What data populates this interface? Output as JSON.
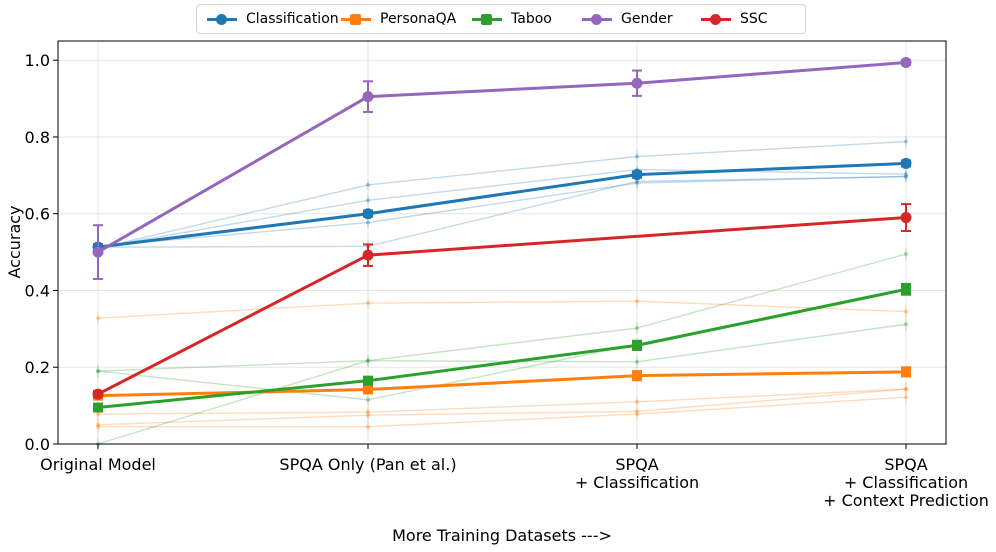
{
  "chart_data": {
    "type": "line",
    "xlabel": "More Training Datasets --->",
    "ylabel": "Accuracy",
    "ylim": [
      0.0,
      1.05
    ],
    "yticks": [
      "0.0",
      "0.2",
      "0.4",
      "0.6",
      "0.8",
      "1.0"
    ],
    "grid": true,
    "legend_position": "top-center",
    "categories": [
      [
        "Original Model"
      ],
      [
        "SPQA Only (Pan et al.)"
      ],
      [
        "SPQA",
        "+ Classification"
      ],
      [
        "SPQA",
        "+ Classification",
        "+ Context Prediction"
      ]
    ],
    "series": [
      {
        "name": "Classification",
        "color": "#1f77b4",
        "marker": "circle",
        "values": [
          0.513,
          0.6,
          0.702,
          0.731
        ],
        "errors": [
          0.008,
          0.008,
          0.008,
          0.008
        ]
      },
      {
        "name": "PersonaQA",
        "color": "#ff7f0e",
        "marker": "square",
        "values": [
          0.126,
          0.142,
          0.178,
          0.188
        ],
        "errors": [
          0.008,
          0.01,
          0.012,
          0.012
        ]
      },
      {
        "name": "Taboo",
        "color": "#2ca02c",
        "marker": "square",
        "values": [
          0.095,
          0.165,
          0.257,
          0.403
        ],
        "errors": [
          0.008,
          0.01,
          0.012,
          0.014
        ]
      },
      {
        "name": "Gender",
        "color": "#9467bd",
        "marker": "circle",
        "values": [
          0.5,
          0.905,
          0.94,
          0.994
        ],
        "errors": [
          0.07,
          0.04,
          0.033,
          0.006
        ]
      },
      {
        "name": "SSC",
        "color": "#d62728",
        "marker": "circle",
        "values": [
          0.13,
          0.492,
          null,
          0.59
        ],
        "errors": [
          0.008,
          0.028,
          0,
          0.035
        ]
      }
    ],
    "faint_series": [
      {
        "color": "#1f77b4",
        "values": [
          0.51,
          0.675,
          0.749,
          0.788
        ]
      },
      {
        "color": "#1f77b4",
        "values": [
          0.512,
          0.635,
          0.715,
          0.703
        ]
      },
      {
        "color": "#1f77b4",
        "values": [
          0.515,
          0.577,
          0.68,
          0.697
        ]
      },
      {
        "color": "#1f77b4",
        "values": [
          0.513,
          0.515,
          0.684,
          0.697
        ]
      },
      {
        "color": "#ff7f0e",
        "values": [
          0.328,
          0.367,
          0.372,
          0.345
        ]
      },
      {
        "color": "#ff7f0e",
        "values": [
          0.078,
          0.083,
          0.11,
          0.143
        ]
      },
      {
        "color": "#ff7f0e",
        "values": [
          0.05,
          0.075,
          0.085,
          0.143
        ]
      },
      {
        "color": "#ff7f0e",
        "values": [
          0.045,
          0.045,
          0.078,
          0.122
        ]
      },
      {
        "color": "#2ca02c",
        "values": [
          0.19,
          0.217,
          0.214,
          0.312
        ]
      },
      {
        "color": "#2ca02c",
        "values": [
          0.0,
          0.217,
          0.302,
          0.495
        ]
      },
      {
        "color": "#2ca02c",
        "values": [
          0.19,
          0.115,
          0.26,
          0.405
        ]
      }
    ]
  }
}
